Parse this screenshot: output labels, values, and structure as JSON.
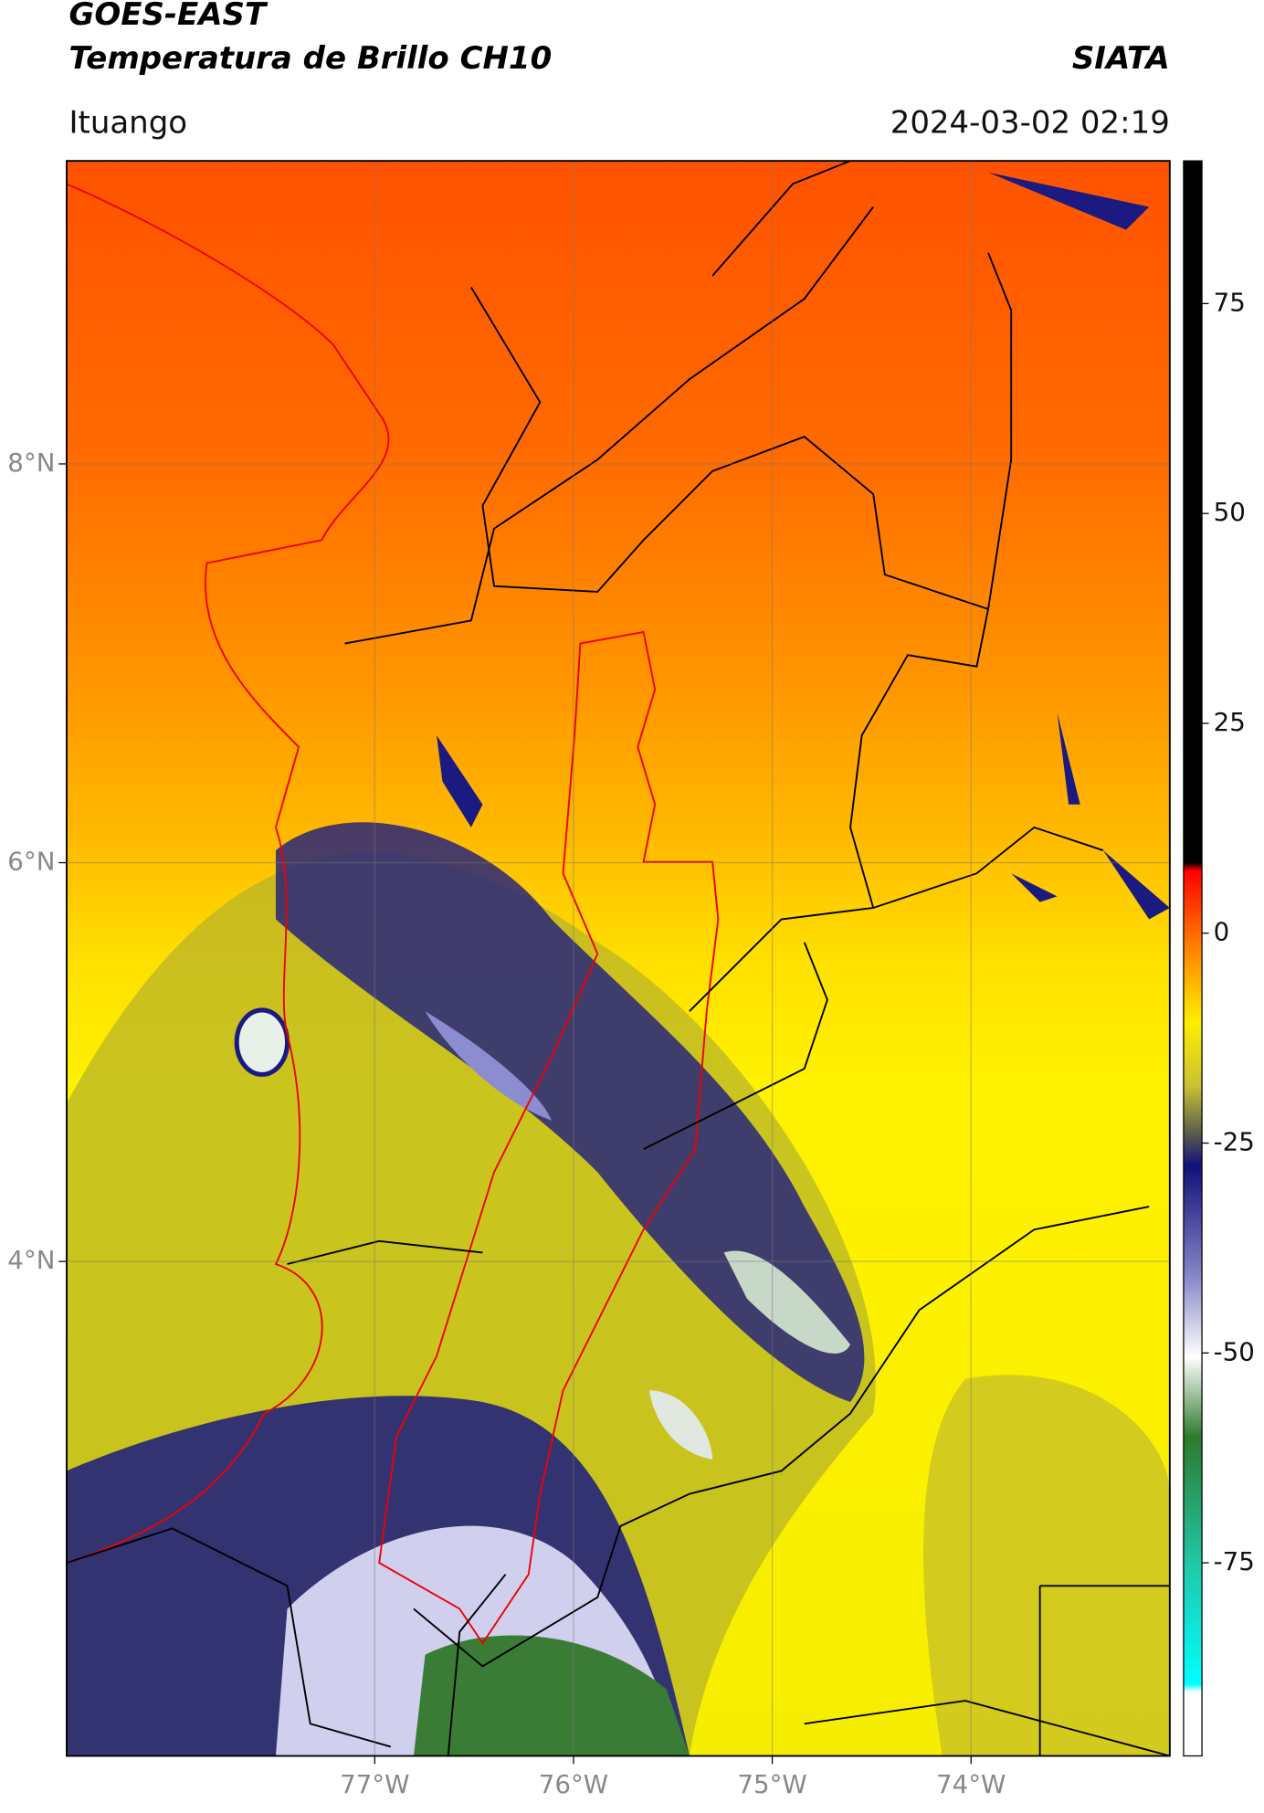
{
  "header": {
    "source": "GOES-EAST",
    "title": "Temperatura de Brillo CH10",
    "brand": "SIATA",
    "place": "Ituango",
    "datetime": "2024-03-02 02:19"
  },
  "map": {
    "xlim": [
      -78.55,
      -73.0
    ],
    "ylim": [
      1.52,
      9.52
    ],
    "xticks": [
      {
        "value": -77,
        "label": "77°W"
      },
      {
        "value": -76,
        "label": "76°W"
      },
      {
        "value": -75,
        "label": "75°W"
      },
      {
        "value": -74,
        "label": "74°W"
      }
    ],
    "yticks": [
      {
        "value": 8,
        "label": "8°N"
      },
      {
        "value": 6,
        "label": "6°N"
      },
      {
        "value": 4,
        "label": "4°N"
      }
    ],
    "grid": true
  },
  "colorbar": {
    "lim": [
      -98,
      92
    ],
    "ticks": [
      75,
      50,
      25,
      0,
      -25,
      -50,
      -75
    ]
  }
}
